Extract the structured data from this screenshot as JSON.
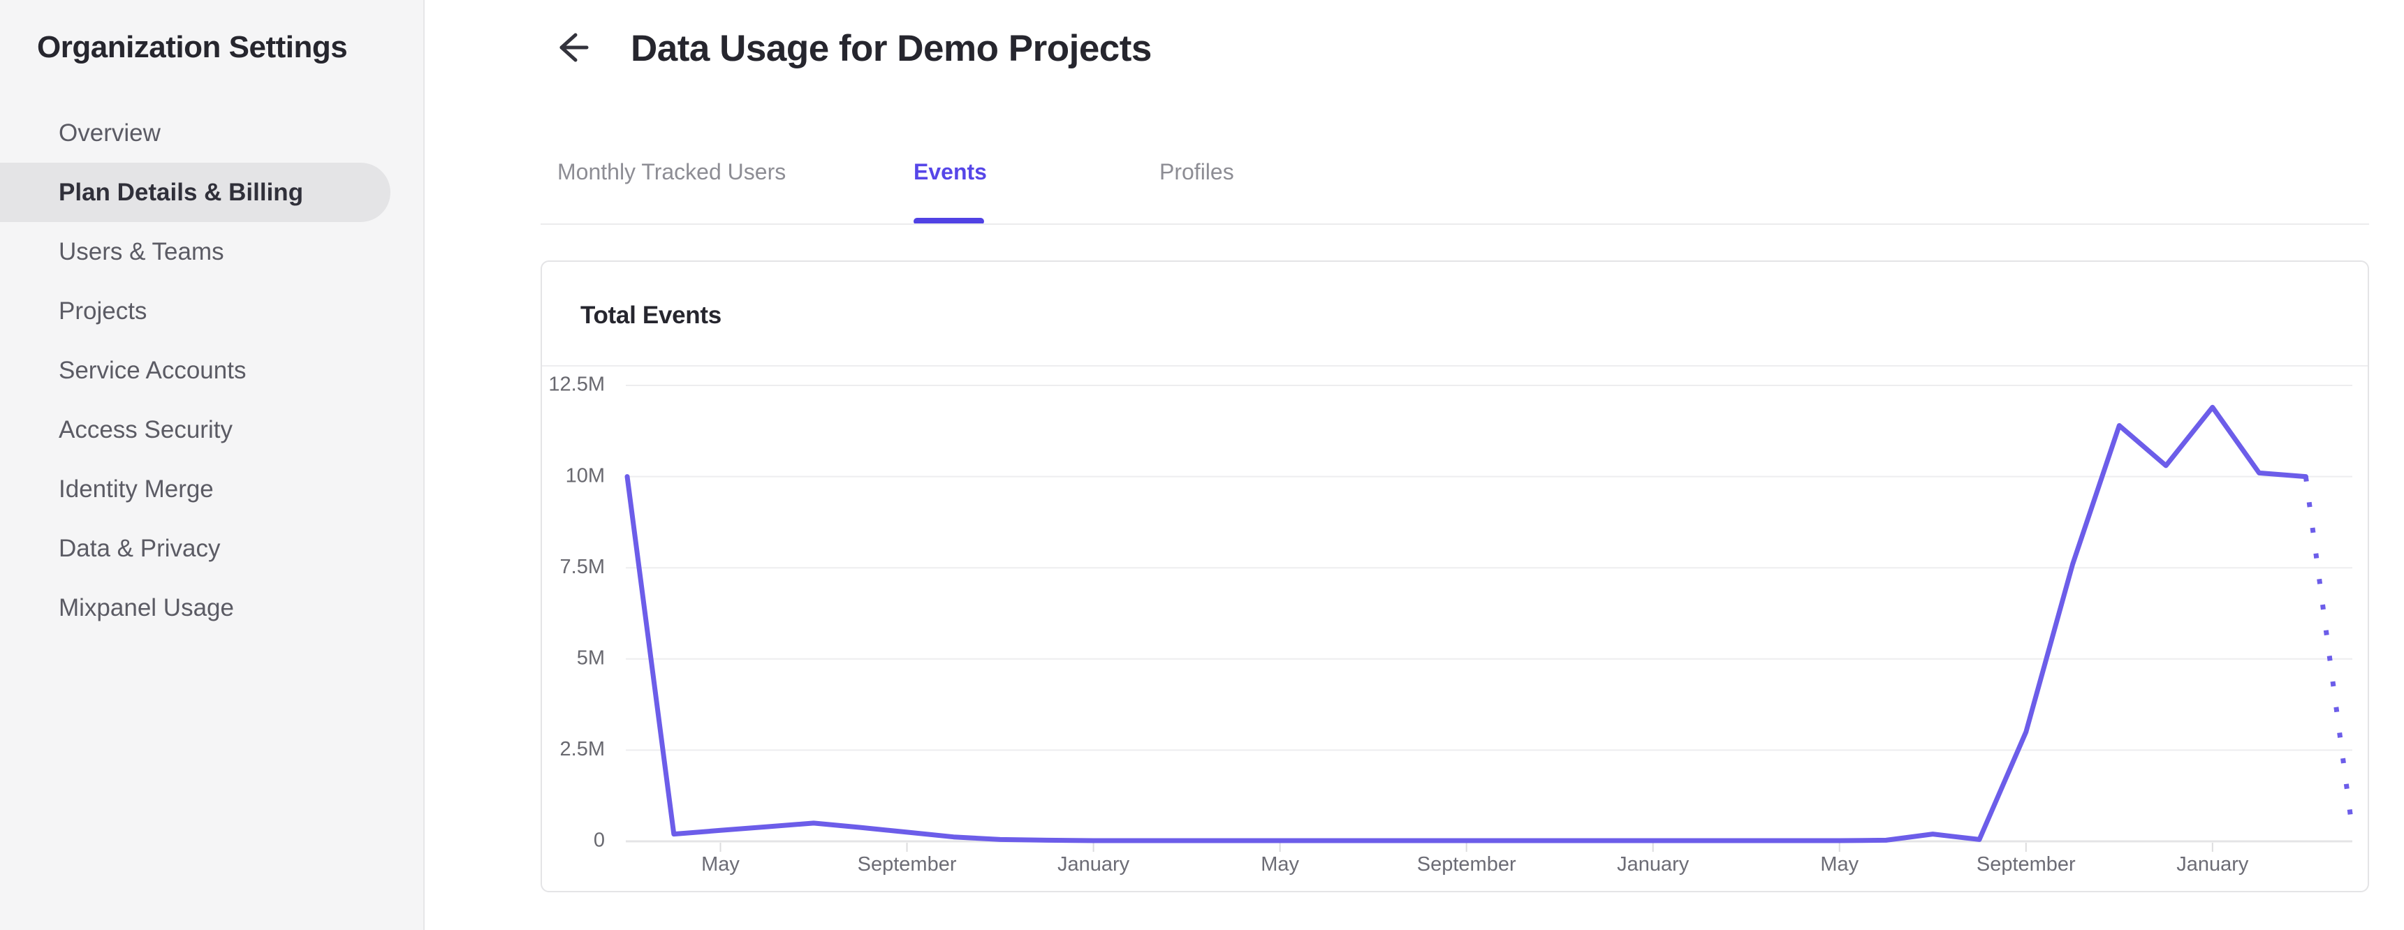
{
  "sidebar": {
    "title": "Organization Settings",
    "items": [
      {
        "label": "Overview",
        "selected": false
      },
      {
        "label": "Plan Details & Billing",
        "selected": true
      },
      {
        "label": "Users & Teams",
        "selected": false
      },
      {
        "label": "Projects",
        "selected": false
      },
      {
        "label": "Service Accounts",
        "selected": false
      },
      {
        "label": "Access Security",
        "selected": false
      },
      {
        "label": "Identity Merge",
        "selected": false
      },
      {
        "label": "Data & Privacy",
        "selected": false
      },
      {
        "label": "Mixpanel Usage",
        "selected": false
      }
    ]
  },
  "header": {
    "title": "Data Usage for Demo Projects"
  },
  "tabs": [
    {
      "label": "Monthly Tracked Users",
      "active": false
    },
    {
      "label": "Events",
      "active": true
    },
    {
      "label": "Profiles",
      "active": false
    }
  ],
  "card": {
    "title": "Total Events"
  },
  "colors": {
    "accent": "#5646e8",
    "line": "#6c5de9",
    "sidebar_bg": "#f5f5f6",
    "selected_pill": "#e4e4e6",
    "gridline": "#ededef",
    "axis_line": "#e4e4e6",
    "text_dark": "#26262e",
    "sidebar_item_text": "#5b5b64",
    "tab_inactive_text": "#8d8d94",
    "axis_label_text": "#6c6c75"
  },
  "chart_data": {
    "type": "line",
    "title": "Total Events",
    "xlabel": "",
    "ylabel": "",
    "grid": "horizontal",
    "legend": "none",
    "ylim_millions": [
      0,
      12.5
    ],
    "y_ticks_millions": [
      0,
      2.5,
      5,
      7.5,
      10,
      12.5
    ],
    "y_tick_labels": [
      "0",
      "2.5M",
      "5M",
      "7.5M",
      "10M",
      "12.5M"
    ],
    "x_tick_labels": [
      "May",
      "September",
      "January",
      "May",
      "September",
      "January",
      "May",
      "September",
      "January"
    ],
    "x_tick_month_indices": [
      2,
      6,
      10,
      14,
      18,
      22,
      26,
      30,
      34
    ],
    "series": [
      {
        "name": "Total Events",
        "unit": "millions of events per month",
        "values_millions": [
          10,
          0.2,
          0.3,
          0.4,
          0.5,
          0.38,
          0.25,
          0.12,
          0.05,
          0.03,
          0.02,
          0.02,
          0.02,
          0.02,
          0.02,
          0.02,
          0.02,
          0.02,
          0.02,
          0.02,
          0.02,
          0.02,
          0.02,
          0.02,
          0.02,
          0.02,
          0.02,
          0.03,
          0.2,
          0.05,
          3.0,
          7.6,
          11.4,
          10.3,
          11.9,
          10.1,
          10.0,
          0.3
        ],
        "final_segment_dotted": true
      }
    ]
  }
}
